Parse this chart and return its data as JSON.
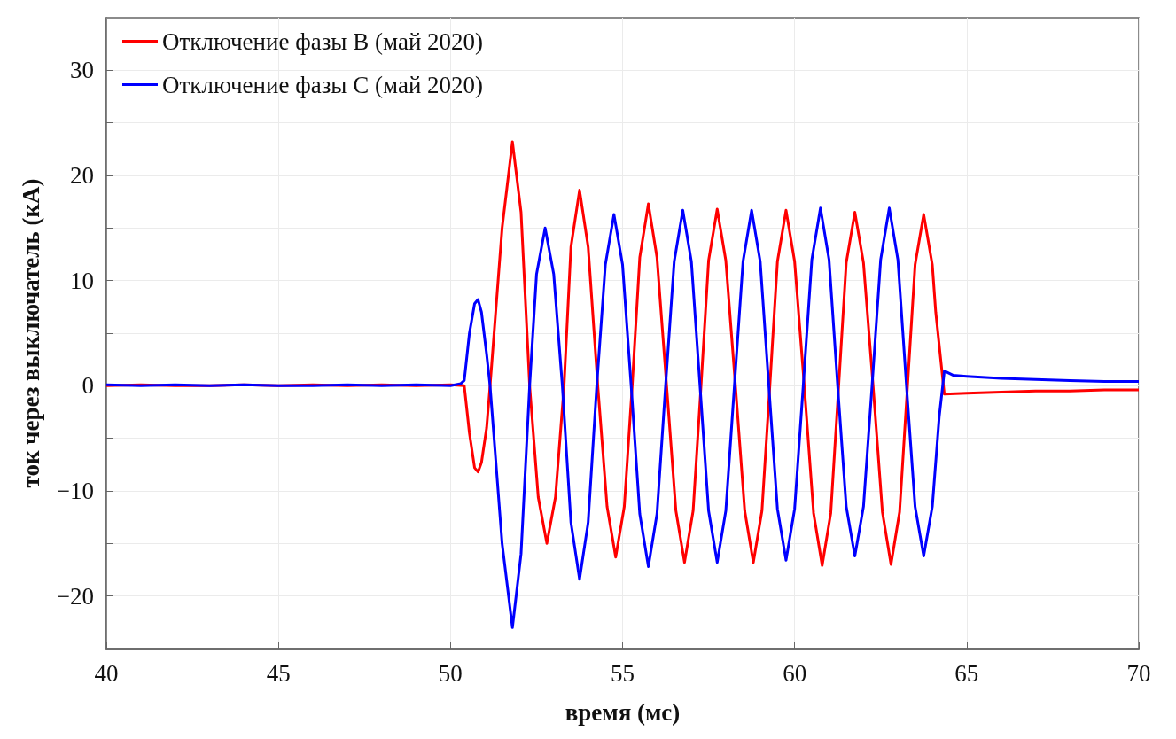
{
  "chart_data": {
    "type": "line",
    "xlabel": "время (мс)",
    "ylabel": "ток через выключатель (кА)",
    "xlim": [
      40,
      70
    ],
    "xticks": [
      40,
      45,
      50,
      55,
      60,
      65,
      70
    ],
    "ylim": [
      -25,
      35
    ],
    "yticks": [
      -20,
      {
        "value": -15,
        "label": null
      },
      -10,
      {
        "value": -5,
        "label": null
      },
      0,
      {
        "value": 5,
        "label": null
      },
      10,
      {
        "value": 15,
        "label": null
      },
      20,
      {
        "value": 25,
        "label": null
      },
      30
    ],
    "grid": true,
    "legend": "top left",
    "marker": "none",
    "line_style": "solid",
    "series": [
      {
        "name": "Отключение фазы B (май 2020)",
        "color": "#ff0000",
        "x": [
          40,
          41,
          42,
          43,
          44,
          45,
          46,
          47,
          48,
          49,
          50,
          50.4,
          50.55,
          50.7,
          50.8,
          50.9,
          51.05,
          51.15,
          51.5,
          51.8,
          52.05,
          52.3,
          52.55,
          52.8,
          53.05,
          53.3,
          53.5,
          53.75,
          54.0,
          54.28,
          54.55,
          54.8,
          55.05,
          55.28,
          55.5,
          55.75,
          56.0,
          56.28,
          56.55,
          56.8,
          57.05,
          57.28,
          57.5,
          57.75,
          58.0,
          58.28,
          58.55,
          58.8,
          59.05,
          59.28,
          59.5,
          59.75,
          60.0,
          60.28,
          60.55,
          60.8,
          61.05,
          61.28,
          61.5,
          61.75,
          62.0,
          62.28,
          62.55,
          62.8,
          63.05,
          63.28,
          63.5,
          63.75,
          64.0,
          64.1,
          64.35,
          65,
          66,
          67,
          68,
          69,
          70
        ],
        "values": [
          0,
          0.1,
          0,
          0,
          0.1,
          0,
          0.1,
          0,
          0.1,
          0,
          0.1,
          0,
          -4.5,
          -7.8,
          -8.2,
          -7.3,
          -4,
          0,
          15,
          23.2,
          16.5,
          0,
          -10.6,
          -15,
          -10.6,
          0,
          13.2,
          18.6,
          13.2,
          0,
          -11.5,
          -16.3,
          -11.5,
          0,
          12.2,
          17.3,
          12.2,
          0,
          -11.9,
          -16.8,
          -11.9,
          0,
          11.9,
          16.8,
          11.9,
          0,
          -11.9,
          -16.8,
          -11.9,
          0,
          11.8,
          16.7,
          11.8,
          0,
          -12.1,
          -17.1,
          -12.1,
          0,
          11.7,
          16.5,
          11.7,
          0,
          -12,
          -17,
          -12,
          0,
          11.5,
          16.3,
          11.5,
          7,
          -0.8,
          -0.7,
          -0.6,
          -0.5,
          -0.5,
          -0.4,
          -0.4
        ]
      },
      {
        "name": "Отключение фазы C (май 2020)",
        "color": "#0000ff",
        "x": [
          40,
          41,
          42,
          43,
          44,
          45,
          46,
          47,
          48,
          49,
          50,
          50.3,
          50.4,
          50.55,
          50.7,
          50.8,
          50.9,
          51.05,
          51.15,
          51.5,
          51.8,
          52.05,
          52.3,
          52.5,
          52.75,
          53.0,
          53.25,
          53.5,
          53.75,
          54.0,
          54.25,
          54.5,
          54.75,
          55.0,
          55.25,
          55.5,
          55.75,
          56.0,
          56.25,
          56.5,
          56.75,
          57.0,
          57.25,
          57.5,
          57.75,
          58.0,
          58.25,
          58.5,
          58.75,
          59.0,
          59.25,
          59.5,
          59.75,
          60.0,
          60.25,
          60.5,
          60.75,
          61.0,
          61.25,
          61.5,
          61.75,
          62.0,
          62.25,
          62.5,
          62.75,
          63.0,
          63.25,
          63.5,
          63.75,
          64.0,
          64.2,
          64.35,
          64.6,
          65,
          66,
          67,
          68,
          69,
          70
        ],
        "values": [
          0.1,
          0,
          0.1,
          0,
          0.1,
          0,
          0,
          0.1,
          0,
          0.1,
          0,
          0.2,
          0.5,
          5,
          7.8,
          8.2,
          7,
          3,
          0,
          -15,
          -23,
          -16,
          0,
          10.6,
          15,
          10.6,
          0,
          -13,
          -18.4,
          -13,
          0,
          11.5,
          16.3,
          11.5,
          0,
          -12.2,
          -17.2,
          -12.2,
          0,
          11.8,
          16.7,
          11.8,
          0,
          -11.9,
          -16.8,
          -11.9,
          0,
          11.8,
          16.7,
          11.8,
          0,
          -11.7,
          -16.6,
          -11.7,
          0,
          12,
          16.9,
          12,
          0,
          -11.5,
          -16.2,
          -11.5,
          0,
          12,
          16.9,
          12,
          0,
          -11.5,
          -16.2,
          -11.5,
          -3,
          1.4,
          1,
          0.9,
          0.7,
          0.6,
          0.5,
          0.4,
          0.4
        ]
      }
    ]
  }
}
